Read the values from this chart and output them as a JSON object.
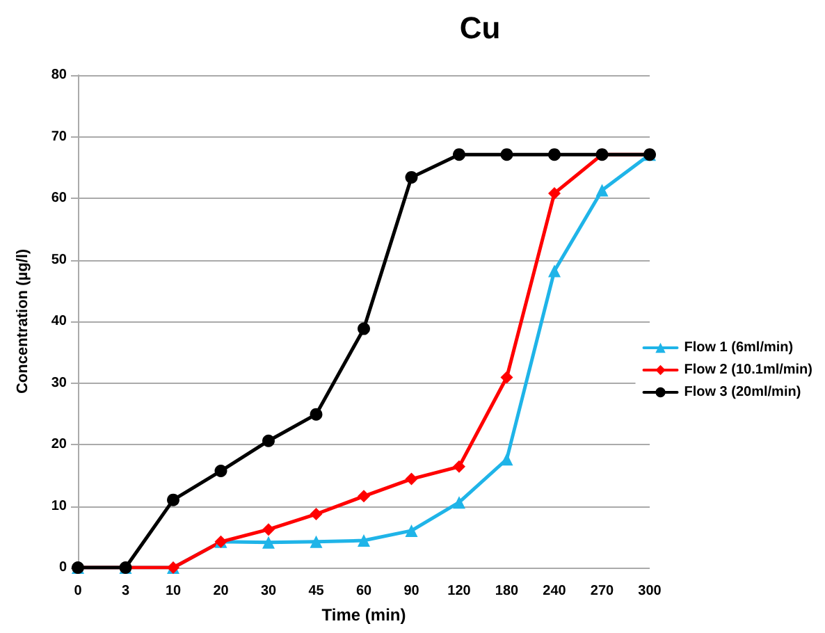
{
  "chart_data": {
    "type": "line",
    "title": "Cu",
    "xlabel": "Time (min)",
    "ylabel": "Concentration (µg/l)",
    "categories": [
      "0",
      "3",
      "10",
      "20",
      "30",
      "45",
      "60",
      "90",
      "120",
      "180",
      "240",
      "270",
      "300"
    ],
    "series": [
      {
        "name": "Flow 1 (6ml/min)",
        "color": "#1fb4e8",
        "marker": "triangle",
        "values": [
          0,
          0,
          0,
          4.2,
          4.1,
          4.2,
          4.4,
          6,
          10.6,
          17.6,
          48.2,
          61.3,
          67.1
        ]
      },
      {
        "name": "Flow 2 (10.1ml/min)",
        "color": "#ff0000",
        "marker": "diamond",
        "values": [
          0,
          0,
          0,
          4.2,
          6.2,
          8.7,
          11.6,
          14.4,
          16.4,
          30.9,
          60.8,
          67.1,
          67.1
        ]
      },
      {
        "name": "Flow 3 (20ml/min)",
        "color": "#000000",
        "marker": "circle",
        "values": [
          0,
          0,
          11,
          15.7,
          20.6,
          24.9,
          38.8,
          63.4,
          67.1,
          67.1,
          67.1,
          67.1,
          67.1
        ]
      }
    ],
    "ylim": [
      0,
      80
    ],
    "yticks": [
      0,
      10,
      20,
      30,
      40,
      50,
      60,
      70,
      80
    ],
    "grid": "y",
    "legend": "right"
  }
}
